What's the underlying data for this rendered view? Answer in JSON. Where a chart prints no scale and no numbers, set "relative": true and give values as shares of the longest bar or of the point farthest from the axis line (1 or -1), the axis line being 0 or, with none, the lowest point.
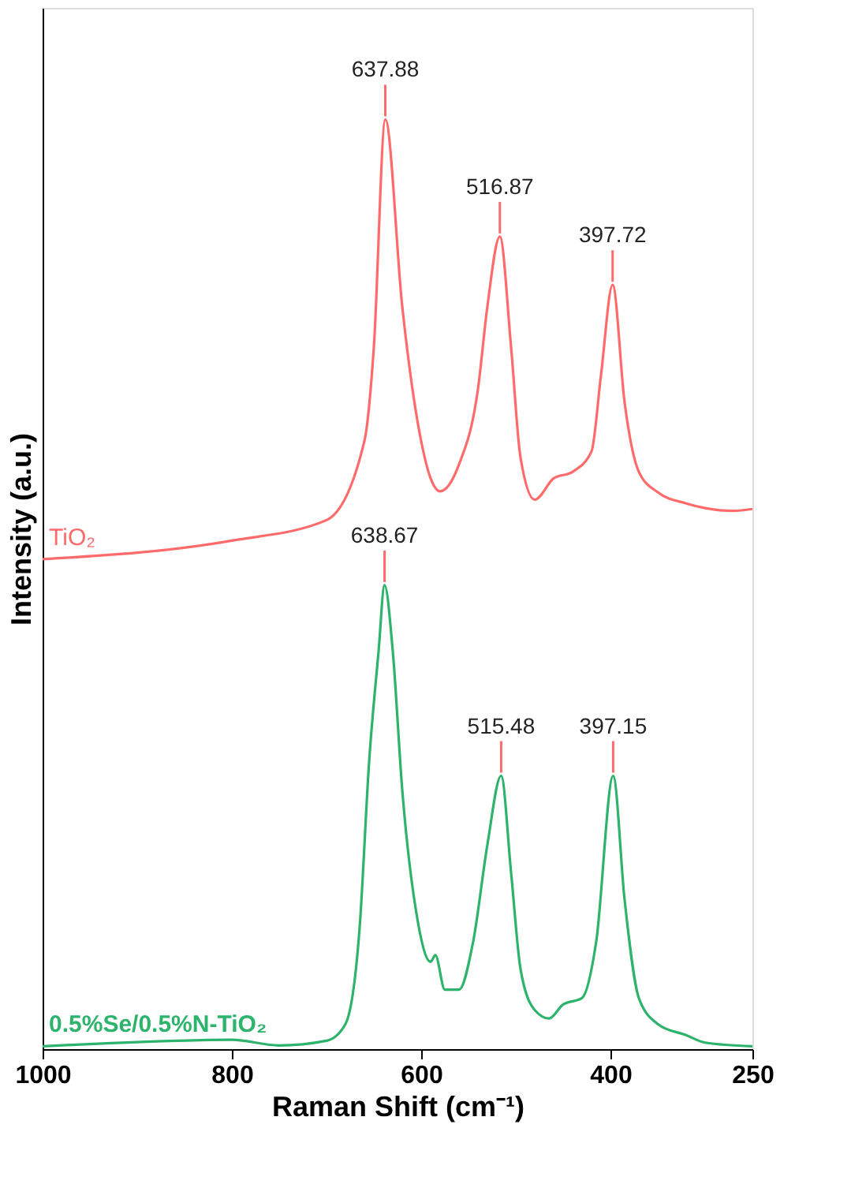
{
  "chart_data": {
    "type": "line",
    "relative": true,
    "xlabel": "Raman Shift (cm⁻¹)",
    "ylabel": "Intensity (a.u.)",
    "xlim": [
      1000,
      250
    ],
    "xticks": [
      1000,
      800,
      600,
      400,
      250
    ],
    "grid": false,
    "legend": false,
    "marker": "none",
    "line_style": "solid",
    "series": [
      {
        "name": "TiO₂",
        "color": "#ff6b6b",
        "x": [
          1000,
          800,
          700,
          660,
          650,
          637.88,
          620,
          600,
          590,
          580,
          560,
          540,
          530,
          516.87,
          505,
          495,
          480,
          460,
          440,
          420,
          410,
          397.72,
          385,
          370,
          350,
          320,
          300,
          270,
          250
        ],
        "values": [
          0.527,
          0.547,
          0.569,
          0.654,
          0.755,
          1.0,
          0.799,
          0.654,
          0.614,
          0.6,
          0.629,
          0.71,
          0.799,
          0.874,
          0.755,
          0.636,
          0.591,
          0.614,
          0.621,
          0.643,
          0.725,
          0.822,
          0.695,
          0.621,
          0.599,
          0.587,
          0.582,
          0.579,
          0.581
        ]
      },
      {
        "name": "0.5%Se/0.5%N-TiO₂",
        "color": "#2db36b",
        "x": [
          1000,
          800,
          750,
          700,
          680,
          665,
          655,
          645,
          638.67,
          630,
          620,
          605,
          590,
          585,
          575,
          560,
          545,
          530,
          515.48,
          505,
          495,
          480,
          465,
          450,
          430,
          415,
          397.15,
          385,
          370,
          350,
          320,
          300,
          250
        ],
        "values": [
          0.003,
          0.01,
          0.004,
          0.009,
          0.027,
          0.131,
          0.309,
          0.428,
          0.499,
          0.428,
          0.279,
          0.146,
          0.094,
          0.101,
          0.064,
          0.064,
          0.116,
          0.22,
          0.294,
          0.19,
          0.086,
          0.042,
          0.033,
          0.048,
          0.055,
          0.116,
          0.294,
          0.16,
          0.055,
          0.027,
          0.015,
          0.007,
          0.003
        ]
      }
    ],
    "annotations": [
      {
        "text": "637.88",
        "x": 637.88,
        "y": 1.0
      },
      {
        "text": "516.87",
        "x": 516.87,
        "y": 0.874
      },
      {
        "text": "397.72",
        "x": 397.72,
        "y": 0.822
      },
      {
        "text": "638.67",
        "x": 638.67,
        "y": 0.499
      },
      {
        "text": "515.48",
        "x": 515.48,
        "y": 0.294
      },
      {
        "text": "397.15",
        "x": 397.15,
        "y": 0.294
      }
    ]
  }
}
